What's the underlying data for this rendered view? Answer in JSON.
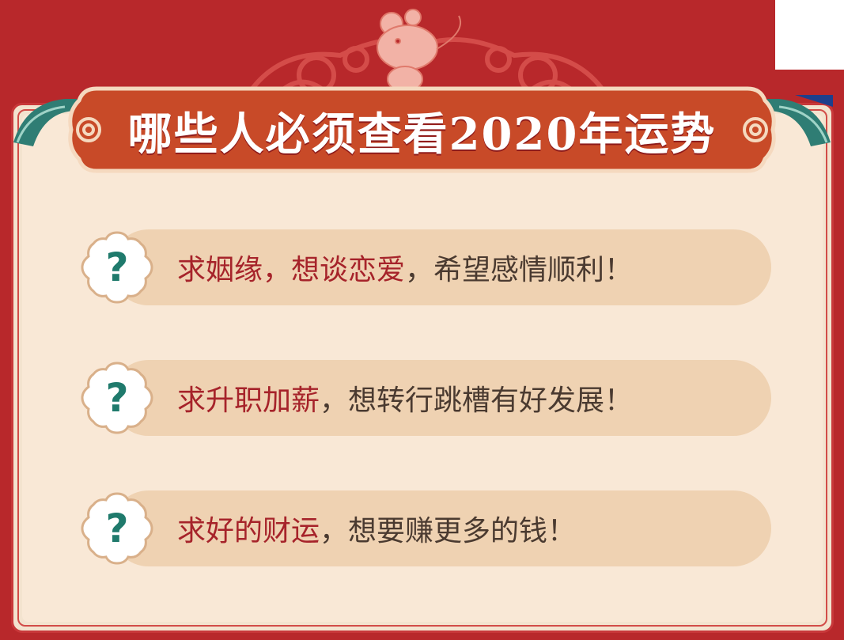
{
  "title": "哪些人必须查看2020年运势",
  "colors": {
    "red": "#b8282b",
    "cream": "#f9e8d6",
    "pill": "#efd2b2",
    "teal": "#1f7a6c",
    "highlight_text": "#a6232a",
    "body_text": "#4a3a30"
  },
  "icons": {
    "question": "?",
    "ornament": "rat-paper-cut-icon"
  },
  "items": [
    {
      "highlight": "求姻缘，想谈恋爱",
      "rest": "，希望感情顺利！"
    },
    {
      "highlight": "求升职加薪",
      "rest": "，想转行跳槽有好发展！"
    },
    {
      "highlight": "求好的财运",
      "rest": "，想要赚更多的钱！"
    }
  ]
}
